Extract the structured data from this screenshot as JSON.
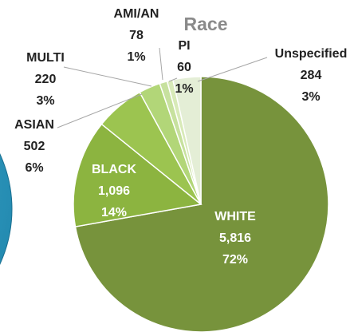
{
  "chart_data": {
    "type": "pie",
    "title": "Race",
    "categories": [
      "WHITE",
      "BLACK",
      "ASIAN",
      "MULTI",
      "AMI/AN",
      "PI",
      "Unspecified"
    ],
    "values": [
      5816,
      1096,
      502,
      220,
      78,
      60,
      284
    ],
    "value_labels": [
      "5,816",
      "1,096",
      "502",
      "220",
      "78",
      "60",
      "284"
    ],
    "percents": [
      72,
      14,
      6,
      3,
      1,
      1,
      3
    ],
    "percent_labels": [
      "72%",
      "14%",
      "6%",
      "3%",
      "1%",
      "1%",
      "3%"
    ],
    "colors": [
      "#77933c",
      "#8cb440",
      "#9cc450",
      "#b2d678",
      "#c7e19e",
      "#d8eab8",
      "#e4eed6"
    ]
  }
}
